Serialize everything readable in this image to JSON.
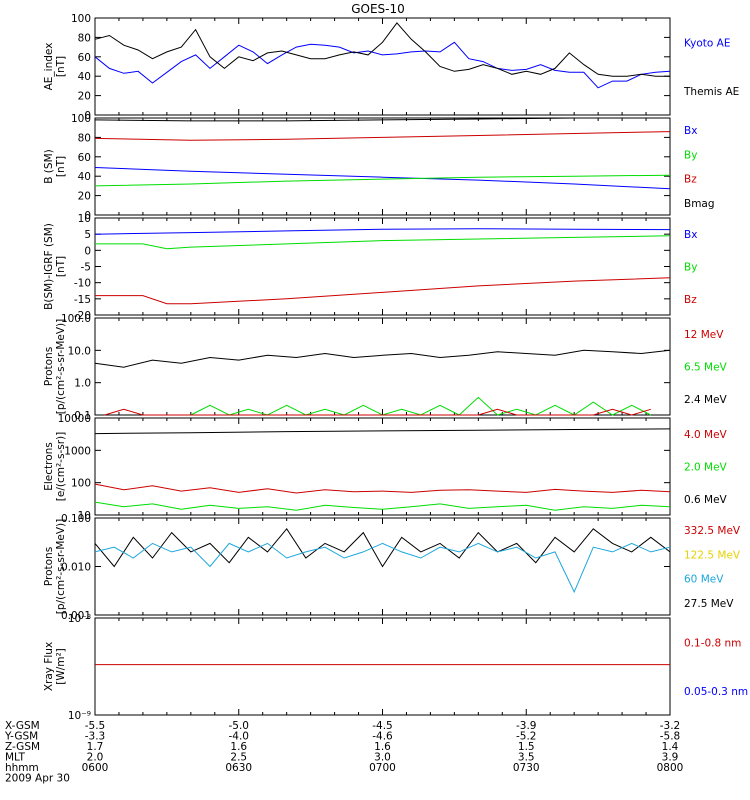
{
  "title": "GOES-10",
  "time_labels": [
    "0600",
    "0630",
    "0700",
    "0730",
    "0800"
  ],
  "ephemeris": {
    "rows": [
      {
        "label": "X-GSM",
        "values": [
          "-5.5",
          "-5.0",
          "-4.5",
          "-3.9",
          "-3.2"
        ]
      },
      {
        "label": "Y-GSM",
        "values": [
          "-3.3",
          "-4.0",
          "-4.6",
          "-5.2",
          "-5.8"
        ]
      },
      {
        "label": "Z-GSM",
        "values": [
          "1.7",
          "1.6",
          "1.6",
          "1.5",
          "1.4"
        ]
      },
      {
        "label": "MLT",
        "values": [
          "2.0",
          "2.5",
          "3.0",
          "3.5",
          "3.9"
        ]
      },
      {
        "label": "hhmm",
        "values": [
          "0600",
          "0630",
          "0700",
          "0730",
          "0800"
        ]
      }
    ],
    "date": "2009 Apr 30"
  },
  "colors": {
    "black": "#000000",
    "blue": "#0000ff",
    "red": "#cc0000",
    "green": "#00dd00",
    "yellow": "#e6d200",
    "cyan": "#1ca6dd"
  },
  "chart_data": [
    {
      "type": "line",
      "panel": "ae",
      "ylabel": [
        "AE_index",
        "[nT]"
      ],
      "ylim": [
        0,
        100
      ],
      "ticks": [
        "0",
        "20",
        "40",
        "60",
        "80",
        "100"
      ],
      "series": [
        {
          "name": "Kyoto AE",
          "color": "blue",
          "x": [
            0,
            3,
            6,
            9,
            12,
            15,
            18,
            21,
            24,
            27,
            30,
            33,
            36,
            39,
            42,
            45,
            48,
            51,
            54,
            57,
            60,
            63,
            66,
            69,
            72,
            75,
            78,
            81,
            84,
            87,
            90,
            93,
            96,
            99,
            102,
            105,
            108,
            111,
            114,
            117,
            120
          ],
          "y": [
            60,
            48,
            43,
            45,
            33,
            44,
            55,
            62,
            48,
            60,
            72,
            65,
            53,
            62,
            70,
            73,
            72,
            70,
            64,
            66,
            62,
            63,
            65,
            66,
            65,
            75,
            58,
            55,
            48,
            46,
            47,
            52,
            46,
            44,
            44,
            28,
            35,
            35,
            42,
            44,
            45
          ]
        },
        {
          "name": "Themis AE",
          "color": "black",
          "x": [
            0,
            3,
            6,
            9,
            12,
            15,
            18,
            21,
            24,
            27,
            30,
            33,
            36,
            39,
            42,
            45,
            48,
            51,
            54,
            57,
            60,
            63,
            66,
            69,
            72,
            75,
            78,
            81,
            84,
            87,
            90,
            93,
            96,
            99,
            102,
            105,
            108,
            111,
            114,
            117,
            120
          ],
          "y": [
            78,
            82,
            72,
            67,
            58,
            65,
            70,
            88,
            60,
            48,
            60,
            56,
            64,
            66,
            62,
            58,
            58,
            62,
            65,
            62,
            75,
            95,
            78,
            65,
            50,
            45,
            47,
            52,
            48,
            42,
            45,
            42,
            48,
            64,
            52,
            42,
            40,
            40,
            42,
            40,
            40
          ]
        }
      ]
    },
    {
      "type": "line",
      "panel": "b",
      "ylabel": [
        "B (SM)",
        "[nT]"
      ],
      "ylim": [
        0,
        100
      ],
      "ticks": [
        "0",
        "20",
        "40",
        "60",
        "80",
        "100"
      ],
      "series": [
        {
          "name": "Bmag",
          "color": "black",
          "x": [
            0,
            20,
            40,
            60,
            80,
            100,
            120
          ],
          "y": [
            98,
            97,
            97,
            98,
            99,
            100,
            100
          ]
        },
        {
          "name": "Bz",
          "color": "red",
          "x": [
            0,
            20,
            40,
            60,
            80,
            100,
            120
          ],
          "y": [
            79,
            77,
            78,
            80,
            82,
            84,
            86
          ]
        },
        {
          "name": "Bx",
          "color": "blue",
          "x": [
            0,
            20,
            40,
            60,
            80,
            100,
            120
          ],
          "y": [
            49,
            45,
            42,
            39,
            36,
            32,
            27
          ]
        },
        {
          "name": "By",
          "color": "green",
          "x": [
            0,
            20,
            40,
            60,
            80,
            100,
            120
          ],
          "y": [
            30,
            32,
            35,
            37,
            39,
            40,
            41
          ]
        }
      ],
      "legend": [
        "Bx",
        "By",
        "Bz",
        "Bmag"
      ]
    },
    {
      "type": "line",
      "panel": "db",
      "ylabel": [
        "B(SM)-IGRF (SM)",
        "[nT]"
      ],
      "ylim": [
        -20,
        10
      ],
      "ticks": [
        "-20",
        "-15",
        "-10",
        "-5",
        "0",
        "5",
        "10"
      ],
      "series": [
        {
          "name": "Bx",
          "color": "blue",
          "x": [
            0,
            20,
            40,
            60,
            80,
            100,
            120
          ],
          "y": [
            5,
            5.5,
            6,
            6.5,
            6.7,
            6.5,
            6.4
          ]
        },
        {
          "name": "By",
          "color": "green",
          "x": [
            0,
            10,
            15,
            20,
            40,
            60,
            80,
            100,
            120
          ],
          "y": [
            2,
            2,
            0.5,
            1,
            2,
            3,
            3.5,
            4,
            4.5
          ]
        },
        {
          "name": "Bz",
          "color": "red",
          "x": [
            0,
            10,
            15,
            20,
            40,
            60,
            80,
            100,
            120
          ],
          "y": [
            -14,
            -14,
            -16.5,
            -16.5,
            -15,
            -13,
            -11,
            -9.5,
            -8.5
          ]
        }
      ],
      "legend": [
        "Bx",
        "By",
        "Bz"
      ]
    },
    {
      "type": "line",
      "panel": "p1",
      "ylabel": [
        "Protons",
        "[p/(cm²-s-sr-MeV)]"
      ],
      "scale": "log",
      "ylim": [
        0.1,
        100
      ],
      "ticks": [
        "0.1",
        "1.0",
        "10.0",
        "100.0"
      ],
      "series": [
        {
          "name": "2.4 MeV",
          "color": "black",
          "x": [
            0,
            6,
            12,
            18,
            24,
            30,
            36,
            42,
            48,
            54,
            60,
            66,
            72,
            78,
            84,
            90,
            96,
            102,
            108,
            114,
            120
          ],
          "y": [
            4,
            3,
            5,
            4,
            6,
            5,
            7,
            6,
            8,
            6,
            7,
            8,
            6,
            7,
            9,
            8,
            7,
            10,
            9,
            8,
            10
          ]
        },
        {
          "name": "6.5 MeV",
          "color": "green",
          "x": [
            20,
            24,
            28,
            32,
            36,
            40,
            44,
            48,
            52,
            56,
            60,
            64,
            68,
            72,
            76,
            80,
            84,
            88,
            92,
            96,
            100,
            104,
            108,
            112,
            116
          ],
          "y": [
            0.1,
            0.2,
            0.1,
            0.15,
            0.1,
            0.2,
            0.1,
            0.15,
            0.1,
            0.2,
            0.1,
            0.15,
            0.1,
            0.2,
            0.1,
            0.35,
            0.1,
            0.15,
            0.1,
            0.2,
            0.1,
            0.25,
            0.1,
            0.2,
            0.1
          ]
        },
        {
          "name": "12 MeV",
          "color": "red",
          "x": [
            2,
            6,
            10,
            80,
            84,
            88,
            104,
            108,
            112,
            116
          ],
          "y": [
            0.1,
            0.15,
            0.1,
            0.1,
            0.15,
            0.1,
            0.1,
            0.15,
            0.1,
            0.15
          ]
        }
      ],
      "legend": [
        "12 MeV",
        "6.5 MeV",
        "2.4 MeV"
      ]
    },
    {
      "type": "line",
      "panel": "e",
      "ylabel": [
        "Electrons",
        "[e/(cm²-s-sr)]"
      ],
      "scale": "log",
      "ylim": [
        10,
        10000
      ],
      "ticks": [
        "10",
        "100",
        "1000",
        "10000"
      ],
      "series": [
        {
          "name": "0.6 MeV",
          "color": "black",
          "x": [
            0,
            20,
            40,
            60,
            80,
            100,
            120
          ],
          "y": [
            3300,
            3500,
            3800,
            4000,
            4200,
            4400,
            4600
          ]
        },
        {
          "name": "4.0 MeV",
          "color": "red",
          "x": [
            0,
            6,
            12,
            18,
            24,
            30,
            36,
            42,
            48,
            54,
            60,
            66,
            72,
            78,
            84,
            90,
            96,
            102,
            108,
            114,
            120
          ],
          "y": [
            90,
            60,
            80,
            55,
            70,
            50,
            65,
            48,
            60,
            52,
            55,
            50,
            58,
            60,
            55,
            50,
            62,
            55,
            50,
            58,
            52
          ]
        },
        {
          "name": "2.0 MeV",
          "color": "green",
          "x": [
            0,
            6,
            12,
            18,
            24,
            30,
            36,
            42,
            48,
            54,
            60,
            66,
            72,
            78,
            84,
            90,
            96,
            102,
            108,
            114,
            120
          ],
          "y": [
            25,
            18,
            22,
            15,
            20,
            16,
            18,
            14,
            20,
            17,
            15,
            18,
            22,
            16,
            18,
            20,
            14,
            18,
            16,
            20,
            18
          ]
        }
      ],
      "legend": [
        "4.0 MeV",
        "2.0 MeV",
        "0.6 MeV"
      ]
    },
    {
      "type": "line",
      "panel": "p2",
      "ylabel": [
        "Protons",
        "[p/(cm²-s-sr-MeV)]"
      ],
      "scale": "log",
      "ylim": [
        0.001,
        0.1
      ],
      "ticks": [
        "0.001",
        "0.010",
        "0.100"
      ],
      "series": [
        {
          "name": "27.5 MeV",
          "color": "black",
          "x": [
            0,
            4,
            8,
            12,
            16,
            20,
            24,
            28,
            32,
            36,
            40,
            44,
            48,
            52,
            56,
            60,
            64,
            68,
            72,
            76,
            80,
            84,
            88,
            92,
            96,
            100,
            104,
            108,
            112,
            116,
            120
          ],
          "y": [
            0.03,
            0.01,
            0.04,
            0.015,
            0.05,
            0.02,
            0.03,
            0.012,
            0.04,
            0.02,
            0.06,
            0.015,
            0.03,
            0.02,
            0.05,
            0.01,
            0.04,
            0.02,
            0.03,
            0.015,
            0.05,
            0.02,
            0.03,
            0.012,
            0.04,
            0.02,
            0.06,
            0.03,
            0.02,
            0.04,
            0.02
          ]
        },
        {
          "name": "60 MeV",
          "color": "cyan",
          "x": [
            0,
            4,
            8,
            12,
            16,
            20,
            24,
            28,
            32,
            36,
            40,
            44,
            48,
            52,
            56,
            60,
            64,
            68,
            72,
            76,
            80,
            84,
            88,
            92,
            96,
            100,
            104,
            108,
            112,
            116,
            120
          ],
          "y": [
            0.02,
            0.025,
            0.015,
            0.03,
            0.02,
            0.025,
            0.01,
            0.03,
            0.02,
            0.03,
            0.015,
            0.02,
            0.025,
            0.015,
            0.02,
            0.03,
            0.02,
            0.015,
            0.025,
            0.02,
            0.03,
            0.02,
            0.025,
            0.015,
            0.02,
            0.003,
            0.025,
            0.02,
            0.03,
            0.02,
            0.025
          ]
        },
        {
          "name": "332.5 MeV",
          "color": "red",
          "x": [],
          "y": []
        },
        {
          "name": "122.5 MeV",
          "color": "yellow",
          "x": [],
          "y": []
        }
      ],
      "legend": [
        "332.5 MeV",
        "122.5 MeV",
        "60 MeV",
        "27.5 MeV"
      ]
    },
    {
      "type": "line",
      "panel": "xray",
      "ylabel": [
        "Xray Flux",
        "[W/m²]"
      ],
      "scale": "log",
      "ticks": [
        "10⁻⁹",
        "10⁻⁸"
      ],
      "series": [
        {
          "name": "0.1-0.8 nm",
          "color": "red",
          "x": [
            0,
            120
          ],
          "y": [
            0.52,
            0.52
          ]
        },
        {
          "name": "0.05-0.3 nm",
          "color": "blue",
          "x": [],
          "y": []
        }
      ],
      "legend": [
        "0.1-0.8 nm",
        "0.05-0.3 nm"
      ]
    }
  ],
  "legends": {
    "ae": [
      {
        "text": "Kyoto AE",
        "color": "blue"
      },
      {
        "text": "Themis AE",
        "color": "black"
      }
    ],
    "b": [
      {
        "text": "Bx",
        "color": "blue"
      },
      {
        "text": "By",
        "color": "green"
      },
      {
        "text": "Bz",
        "color": "red"
      },
      {
        "text": "Bmag",
        "color": "black"
      }
    ],
    "db": [
      {
        "text": "Bx",
        "color": "blue"
      },
      {
        "text": "By",
        "color": "green"
      },
      {
        "text": "Bz",
        "color": "red"
      }
    ],
    "p1": [
      {
        "text": "12 MeV",
        "color": "red"
      },
      {
        "text": "6.5 MeV",
        "color": "green"
      },
      {
        "text": "2.4 MeV",
        "color": "black"
      }
    ],
    "e": [
      {
        "text": "4.0 MeV",
        "color": "red"
      },
      {
        "text": "2.0 MeV",
        "color": "green"
      },
      {
        "text": "0.6 MeV",
        "color": "black"
      }
    ],
    "p2": [
      {
        "text": "332.5 MeV",
        "color": "red"
      },
      {
        "text": "122.5 MeV",
        "color": "yellow"
      },
      {
        "text": "60 MeV",
        "color": "cyan"
      },
      {
        "text": "27.5 MeV",
        "color": "black"
      }
    ],
    "xray": [
      {
        "text": "0.1-0.8 nm",
        "color": "red"
      },
      {
        "text": "0.05-0.3 nm",
        "color": "blue"
      }
    ]
  }
}
